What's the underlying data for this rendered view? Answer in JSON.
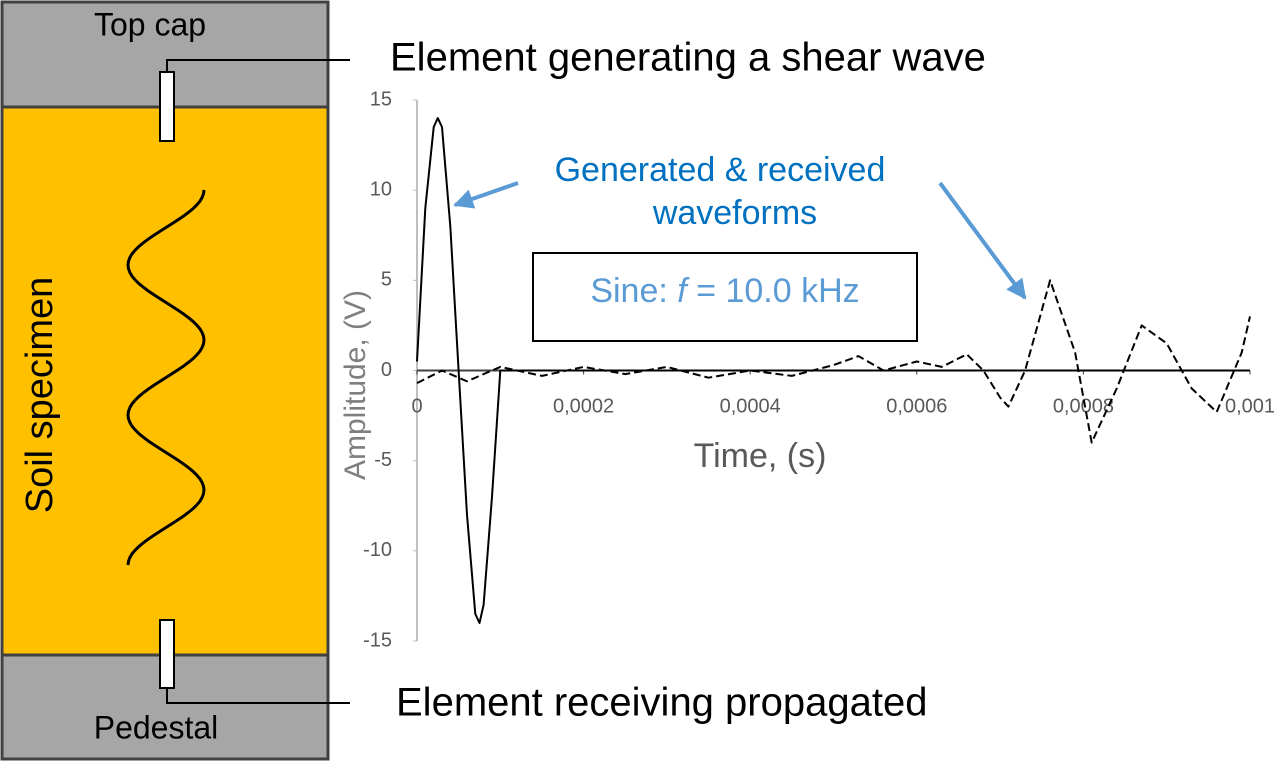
{
  "diagram": {
    "top_cap": "Top cap",
    "pedestal": "Pedestal",
    "specimen": "Soil specimen",
    "generating_element": "Element generating a shear wave",
    "receiving_element": "Element receiving propagated"
  },
  "chart_data": {
    "type": "line",
    "xlabel": "Time, (s)",
    "ylabel": "Amplitude, (V)",
    "annotation_lines": [
      "Generated  &  received",
      "waveforms"
    ],
    "box_label": {
      "prefix": "Sine: ",
      "symbol": "f",
      "suffix": " = 10.0 kHz"
    },
    "xlim": [
      0,
      0.001
    ],
    "ylim": [
      -15,
      15
    ],
    "xticks": [
      0,
      {
        "value": 0.0002,
        "label": "0,0002"
      },
      {
        "value": 0.0004,
        "label": "0,0004"
      },
      {
        "value": 0.0006,
        "label": "0,0006"
      },
      {
        "value": 0.0008,
        "label": "0,0008"
      },
      {
        "value": 0.001,
        "label": "0,001"
      }
    ],
    "yticks": [
      -15,
      -10,
      -5,
      0,
      5,
      10,
      15
    ],
    "series": [
      {
        "color": "#000000",
        "dash": "solid",
        "x": [
          0,
          1e-05,
          2e-05,
          2.5e-05,
          3e-05,
          4e-05,
          5e-05,
          6e-05,
          7e-05,
          7.5e-05,
          8e-05,
          9e-05,
          0.0001,
          0.001
        ],
        "values": [
          0.5,
          9,
          13.5,
          14,
          13.5,
          8,
          0,
          -8,
          -13.5,
          -14,
          -13,
          -7,
          0,
          0
        ]
      },
      {
        "color": "#000000",
        "dash": "dashed",
        "x": [
          0,
          3e-05,
          6e-05,
          0.0001,
          0.00015,
          0.0002,
          0.00025,
          0.0003,
          0.00035,
          0.0004,
          0.00045,
          0.0005,
          0.00053,
          0.00056,
          0.0006,
          0.00063,
          0.00066,
          0.00068,
          0.0007,
          0.00071,
          0.00073,
          0.00076,
          0.00079,
          0.00081,
          0.00084,
          0.00087,
          0.0009,
          0.00093,
          0.00096,
          0.00099,
          0.001
        ],
        "values": [
          -0.7,
          0,
          -0.6,
          0.2,
          -0.3,
          0.2,
          -0.2,
          0.2,
          -0.4,
          0,
          -0.3,
          0.3,
          0.8,
          0,
          0.5,
          0.2,
          0.9,
          0,
          -1.5,
          -2,
          0,
          5,
          1,
          -4,
          -1,
          2.5,
          1.5,
          -1,
          -2.3,
          1,
          3
        ]
      }
    ]
  }
}
